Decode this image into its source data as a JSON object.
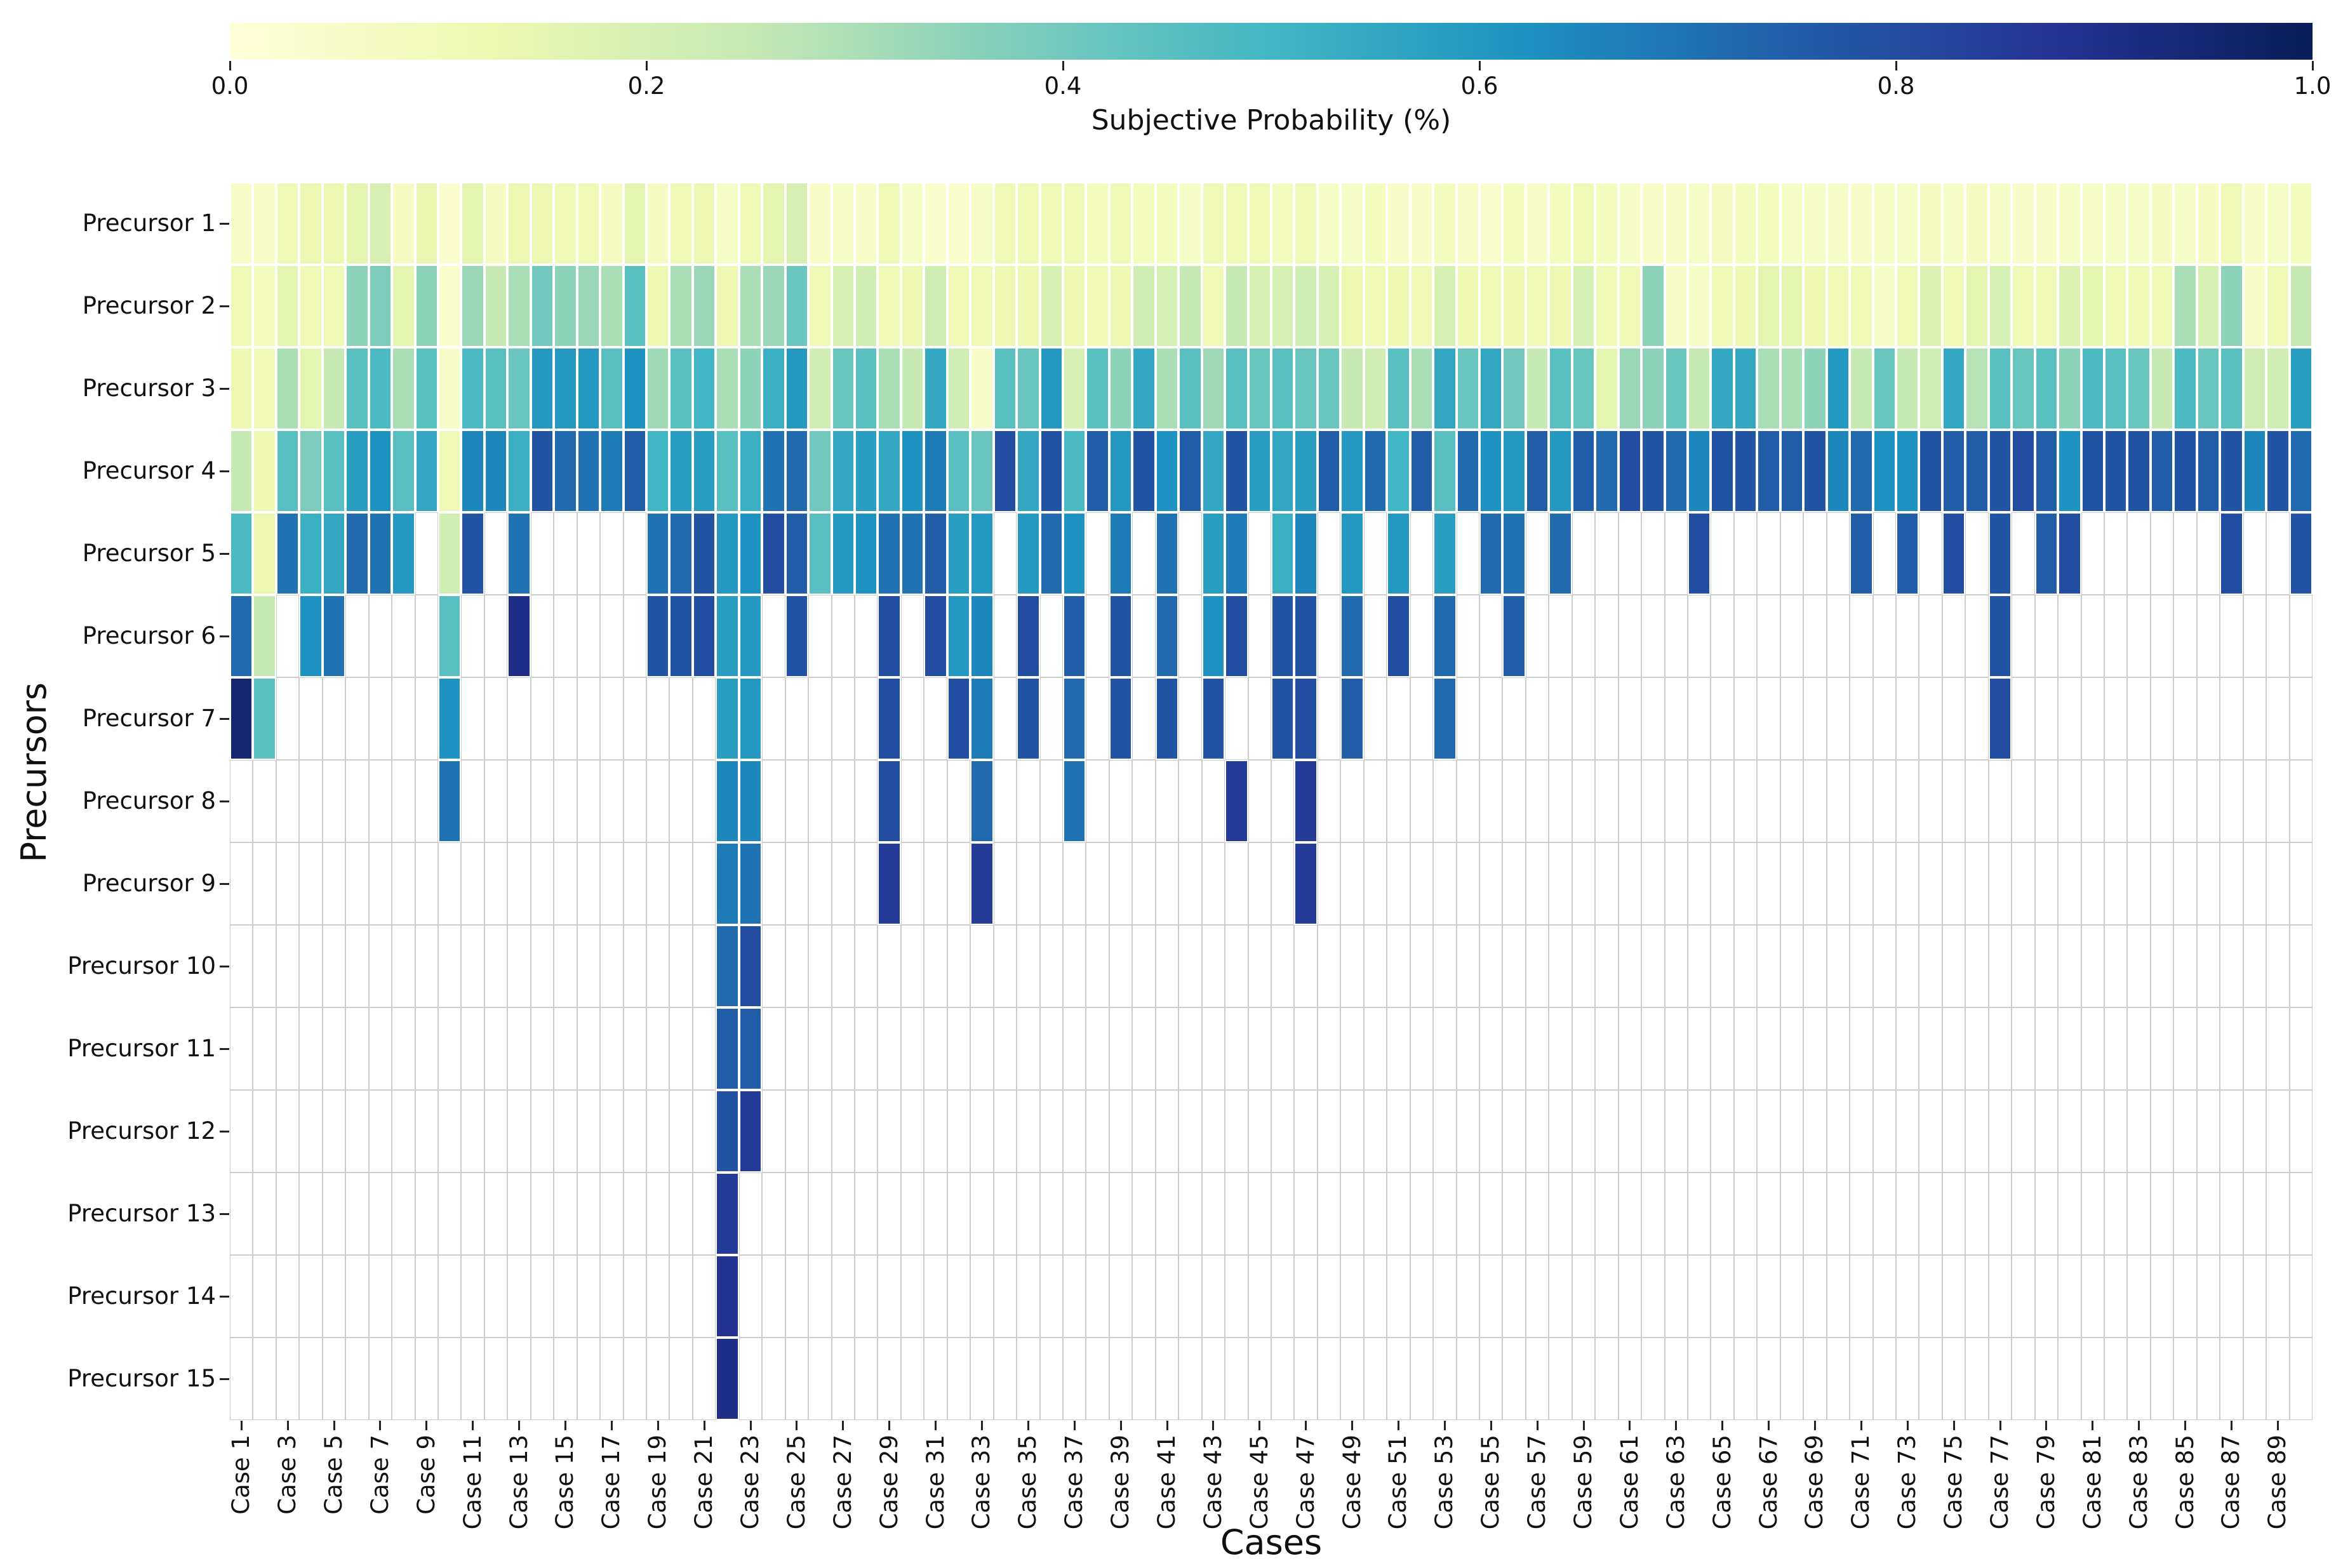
{
  "figure": {
    "colorbar": {
      "label": "Subjective Probability (%)",
      "tick_labels": [
        "0.0",
        "0.2",
        "0.4",
        "0.6",
        "0.8",
        "1.0"
      ],
      "colormap_stops": [
        "#ffffd9",
        "#edf8b1",
        "#c7e9b4",
        "#7fcdbb",
        "#41b6c4",
        "#1d91c0",
        "#225ea8",
        "#253494",
        "#081d58"
      ]
    },
    "x_axis": {
      "label": "Cases",
      "tick_labels": [
        "Case 1",
        "Case 3",
        "Case 5",
        "Case 7",
        "Case 9",
        "Case 11",
        "Case 13",
        "Case 15",
        "Case 17",
        "Case 19",
        "Case 21",
        "Case 23",
        "Case 25",
        "Case 27",
        "Case 29",
        "Case 31",
        "Case 33",
        "Case 35",
        "Case 37",
        "Case 39",
        "Case 41",
        "Case 43",
        "Case 45",
        "Case 47",
        "Case 49",
        "Case 51",
        "Case 53",
        "Case 55",
        "Case 57",
        "Case 59",
        "Case 61",
        "Case 63",
        "Case 65",
        "Case 67",
        "Case 69",
        "Case 71",
        "Case 73",
        "Case 75",
        "Case 77",
        "Case 79",
        "Case 81",
        "Case 83",
        "Case 85",
        "Case 87",
        "Case 89"
      ]
    },
    "y_axis": {
      "label": "Precursors",
      "tick_labels": [
        "Precursor 1",
        "Precursor 2",
        "Precursor 3",
        "Precursor 4",
        "Precursor 5",
        "Precursor 6",
        "Precursor 7",
        "Precursor 8",
        "Precursor 9",
        "Precursor 10",
        "Precursor 11",
        "Precursor 12",
        "Precursor 13",
        "Precursor 14",
        "Precursor 15"
      ]
    }
  },
  "chart_data": {
    "type": "heatmap",
    "colormap": "YlGnBu",
    "value_range": [
      0,
      1
    ],
    "n_precursors": 15,
    "n_cases": 90,
    "legend_position": "top",
    "grid": true,
    "note_empty": "null = no value (white cell)",
    "values_by_case": [
      [
        0.05,
        0.1,
        0.12,
        0.25,
        0.48,
        0.72,
        0.95
      ],
      [
        0.05,
        0.08,
        0.1,
        0.12,
        0.12,
        0.25,
        0.45
      ],
      [
        0.1,
        0.15,
        0.3,
        0.45,
        0.7
      ],
      [
        0.12,
        0.1,
        0.15,
        0.38,
        0.52,
        0.62
      ],
      [
        0.12,
        0.1,
        0.25,
        0.45,
        0.55,
        0.7
      ],
      [
        0.15,
        0.35,
        0.45,
        0.58,
        0.72
      ],
      [
        0.2,
        0.38,
        0.48,
        0.62,
        0.7
      ],
      [
        0.07,
        0.15,
        0.3,
        0.45,
        0.6
      ],
      [
        0.13,
        0.35,
        0.45,
        0.55
      ],
      [
        0.03,
        0.04,
        0.05,
        0.1,
        0.22,
        0.45,
        0.62,
        0.7
      ],
      [
        0.15,
        0.33,
        0.48,
        0.65,
        0.78
      ],
      [
        0.07,
        0.25,
        0.45,
        0.65
      ],
      [
        0.12,
        0.3,
        0.42,
        0.52,
        0.7,
        0.9
      ],
      [
        0.12,
        0.4,
        0.6,
        0.78
      ],
      [
        0.1,
        0.35,
        0.6,
        0.72
      ],
      [
        0.1,
        0.33,
        0.6,
        0.7
      ],
      [
        0.07,
        0.3,
        0.45,
        0.68
      ],
      [
        0.15,
        0.45,
        0.62,
        0.75
      ],
      [
        0.07,
        0.12,
        0.32,
        0.5,
        0.7,
        0.78
      ],
      [
        0.1,
        0.3,
        0.45,
        0.58,
        0.72,
        0.78
      ],
      [
        0.12,
        0.33,
        0.5,
        0.58,
        0.78,
        0.8
      ],
      [
        0.06,
        0.12,
        0.3,
        0.45,
        0.6,
        0.58,
        0.58,
        0.65,
        0.68,
        0.72,
        0.75,
        0.78,
        0.85,
        0.88,
        0.9
      ],
      [
        0.1,
        0.3,
        0.35,
        0.52,
        0.62,
        0.6,
        0.6,
        0.65,
        0.7,
        0.8,
        0.75,
        0.85
      ],
      [
        0.15,
        0.33,
        0.52,
        0.7,
        0.8
      ],
      [
        0.2,
        0.42,
        0.6,
        0.72,
        0.75,
        0.78
      ],
      [
        0.05,
        0.1,
        0.22,
        0.4,
        0.45
      ],
      [
        0.06,
        0.2,
        0.42,
        0.55,
        0.6
      ],
      [
        0.05,
        0.22,
        0.45,
        0.58,
        0.62
      ],
      [
        0.1,
        0.1,
        0.3,
        0.55,
        0.7,
        0.8,
        0.8,
        0.8,
        0.85
      ],
      [
        0.06,
        0.12,
        0.25,
        0.62,
        0.7
      ],
      [
        0.04,
        0.22,
        0.55,
        0.68,
        0.75,
        0.8
      ],
      [
        0.04,
        0.1,
        0.22,
        0.45,
        0.58,
        0.6,
        0.8
      ],
      [
        0.06,
        0.1,
        0.05,
        0.42,
        0.6,
        0.65,
        0.68,
        0.72,
        0.85
      ],
      [
        0.1,
        0.12,
        0.45,
        0.8
      ],
      [
        0.1,
        0.12,
        0.42,
        0.55,
        0.6,
        0.8,
        0.78
      ],
      [
        0.1,
        0.2,
        0.6,
        0.78,
        0.72
      ],
      [
        0.1,
        0.12,
        0.2,
        0.48,
        0.62,
        0.75,
        0.72,
        0.7
      ],
      [
        0.08,
        0.1,
        0.45,
        0.75
      ],
      [
        0.1,
        0.12,
        0.35,
        0.6,
        0.68,
        0.78,
        0.78
      ],
      [
        0.08,
        0.22,
        0.55,
        0.78
      ],
      [
        0.08,
        0.2,
        0.3,
        0.62,
        0.7,
        0.72,
        0.78
      ],
      [
        0.06,
        0.25,
        0.45,
        0.75
      ],
      [
        0.1,
        0.1,
        0.32,
        0.55,
        0.58,
        0.62,
        0.78
      ],
      [
        0.1,
        0.25,
        0.45,
        0.78,
        0.68,
        0.8,
        null,
        0.85
      ],
      [
        0.1,
        0.2,
        0.42,
        0.58
      ],
      [
        0.08,
        0.2,
        0.45,
        0.55,
        0.52,
        0.78,
        0.78
      ],
      [
        0.1,
        0.22,
        0.42,
        0.58,
        0.65,
        0.78,
        0.8,
        0.85,
        0.85
      ],
      [
        0.06,
        0.2,
        0.42,
        0.75
      ],
      [
        0.06,
        0.12,
        0.25,
        0.6,
        0.6,
        0.72,
        0.75
      ],
      [
        0.08,
        0.1,
        0.22,
        0.72
      ],
      [
        0.05,
        0.12,
        0.45,
        0.5,
        0.6,
        0.8
      ],
      [
        0.05,
        0.1,
        0.3,
        0.75
      ],
      [
        0.08,
        0.2,
        0.55,
        0.45,
        0.58,
        0.72,
        0.72
      ],
      [
        0.05,
        0.12,
        0.42,
        0.72
      ],
      [
        0.04,
        0.1,
        0.55,
        0.62,
        0.72
      ],
      [
        0.08,
        0.12,
        0.4,
        0.6,
        0.7,
        0.75
      ],
      [
        0.05,
        0.1,
        0.25,
        0.75
      ],
      [
        0.08,
        0.12,
        0.45,
        0.6,
        0.72
      ],
      [
        0.1,
        0.2,
        0.42,
        0.75
      ],
      [
        0.08,
        0.1,
        0.15,
        0.72
      ],
      [
        0.06,
        0.1,
        0.33,
        0.8
      ],
      [
        0.05,
        0.35,
        0.35,
        0.78
      ],
      [
        0.05,
        0.05,
        0.42,
        0.72
      ],
      [
        0.06,
        0.06,
        0.25,
        0.65,
        0.8
      ],
      [
        0.07,
        0.1,
        0.55,
        0.78
      ],
      [
        0.08,
        0.12,
        0.55,
        0.78
      ],
      [
        0.08,
        0.15,
        0.3,
        0.75
      ],
      [
        0.06,
        0.15,
        0.3,
        0.75
      ],
      [
        0.06,
        0.12,
        0.35,
        0.78
      ],
      [
        0.06,
        0.1,
        0.6,
        0.65
      ],
      [
        0.05,
        0.1,
        0.25,
        0.72,
        0.75
      ],
      [
        0.06,
        0.06,
        0.42,
        0.62
      ],
      [
        0.06,
        0.1,
        0.25,
        0.62,
        0.75
      ],
      [
        0.07,
        0.18,
        0.22,
        0.78
      ],
      [
        0.06,
        0.1,
        0.55,
        0.75,
        0.8
      ],
      [
        0.07,
        0.15,
        0.28,
        0.75
      ],
      [
        0.06,
        0.2,
        0.45,
        0.78,
        0.78,
        0.78,
        0.8
      ],
      [
        0.05,
        0.1,
        0.42,
        0.8
      ],
      [
        0.05,
        0.1,
        0.45,
        0.75,
        0.75
      ],
      [
        0.06,
        0.18,
        0.35,
        0.62,
        0.8
      ],
      [
        0.06,
        0.15,
        0.48,
        0.78
      ],
      [
        0.06,
        0.1,
        0.45,
        0.78
      ],
      [
        0.06,
        0.1,
        0.42,
        0.78
      ],
      [
        0.07,
        0.1,
        0.25,
        0.75
      ],
      [
        0.06,
        0.3,
        0.48,
        0.78
      ],
      [
        0.07,
        0.2,
        0.42,
        0.75
      ],
      [
        0.1,
        0.35,
        0.45,
        0.78,
        0.8
      ],
      [
        0.05,
        0.05,
        0.22,
        0.65
      ],
      [
        0.06,
        0.1,
        0.22,
        0.78
      ],
      [
        0.08,
        0.25,
        0.58,
        0.72,
        0.78
      ]
    ]
  }
}
